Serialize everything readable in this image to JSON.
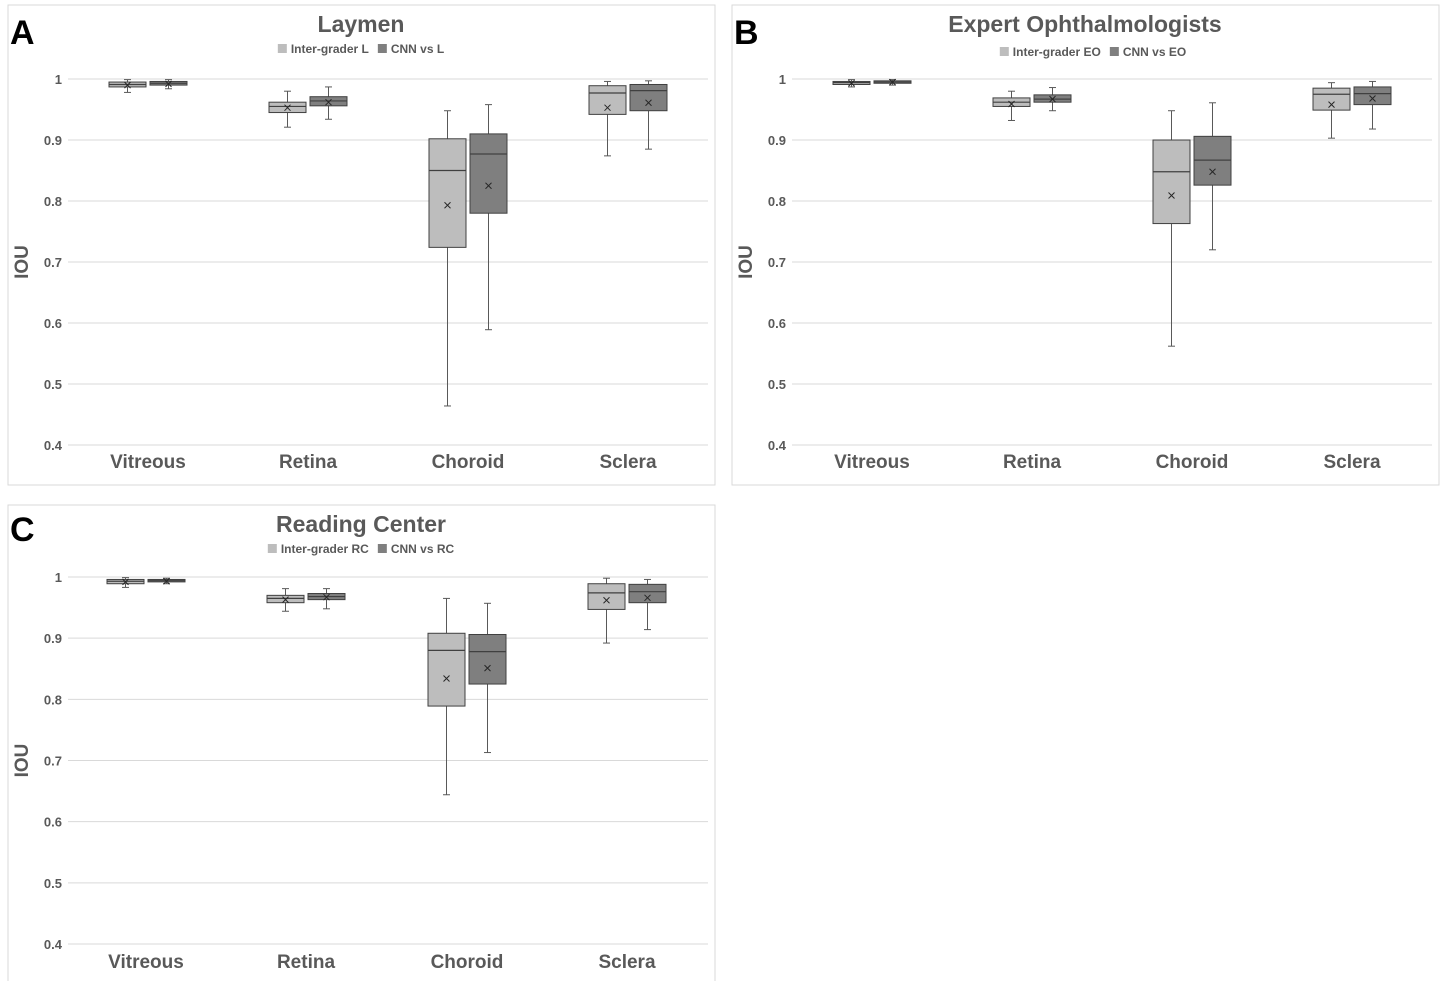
{
  "chart_data": [
    {
      "panel_letter": "A",
      "type": "box",
      "title": "Laymen",
      "ylabel": "IOU",
      "ylim": [
        0.4,
        1
      ],
      "yticks": [
        "0.4",
        "0.5",
        "0.6",
        "0.7",
        "0.8",
        "0.9",
        "1"
      ],
      "grid": true,
      "legend_position": "top-center",
      "categories": [
        "Vitreous",
        "Retina",
        "Choroid",
        "Sclera"
      ],
      "series": [
        {
          "name": "Inter-grader L",
          "color": "#bdbdbd",
          "boxes": [
            {
              "min": 0.978,
              "q1": 0.987,
              "median": 0.991,
              "q3": 0.995,
              "max": 0.999,
              "mean": 0.99
            },
            {
              "min": 0.921,
              "q1": 0.945,
              "median": 0.955,
              "q3": 0.962,
              "max": 0.98,
              "mean": 0.953
            },
            {
              "min": 0.464,
              "q1": 0.724,
              "median": 0.85,
              "q3": 0.902,
              "max": 0.948,
              "mean": 0.793
            },
            {
              "min": 0.874,
              "q1": 0.942,
              "median": 0.977,
              "q3": 0.989,
              "max": 0.996,
              "mean": 0.953
            }
          ]
        },
        {
          "name": "CNN vs L",
          "color": "#7f7f7f",
          "boxes": [
            {
              "min": 0.984,
              "q1": 0.99,
              "median": 0.993,
              "q3": 0.996,
              "max": 0.999,
              "mean": 0.992
            },
            {
              "min": 0.934,
              "q1": 0.956,
              "median": 0.964,
              "q3": 0.971,
              "max": 0.987,
              "mean": 0.962
            },
            {
              "min": 0.589,
              "q1": 0.78,
              "median": 0.877,
              "q3": 0.91,
              "max": 0.958,
              "mean": 0.825
            },
            {
              "min": 0.885,
              "q1": 0.948,
              "median": 0.981,
              "q3": 0.991,
              "max": 0.997,
              "mean": 0.961
            }
          ]
        }
      ]
    },
    {
      "panel_letter": "B",
      "type": "box",
      "title": "Expert Ophthalmologists",
      "ylabel": "IOU",
      "ylim": [
        0.4,
        1
      ],
      "yticks": [
        "0.4",
        "0.5",
        "0.6",
        "0.7",
        "0.8",
        "0.9",
        "1"
      ],
      "grid": true,
      "legend_position": "top-center",
      "categories": [
        "Vitreous",
        "Retina",
        "Choroid",
        "Sclera"
      ],
      "series": [
        {
          "name": "Inter-grader EO",
          "color": "#bdbdbd",
          "boxes": [
            {
              "min": 0.987,
              "q1": 0.991,
              "median": 0.994,
              "q3": 0.996,
              "max": 0.999,
              "mean": 0.993
            },
            {
              "min": 0.932,
              "q1": 0.955,
              "median": 0.962,
              "q3": 0.969,
              "max": 0.98,
              "mean": 0.959
            },
            {
              "min": 0.562,
              "q1": 0.763,
              "median": 0.848,
              "q3": 0.9,
              "max": 0.948,
              "mean": 0.809
            },
            {
              "min": 0.903,
              "q1": 0.949,
              "median": 0.975,
              "q3": 0.985,
              "max": 0.994,
              "mean": 0.958
            }
          ]
        },
        {
          "name": "CNN vs EO",
          "color": "#7f7f7f",
          "boxes": [
            {
              "min": 0.99,
              "q1": 0.993,
              "median": 0.995,
              "q3": 0.997,
              "max": 0.999,
              "mean": 0.995
            },
            {
              "min": 0.948,
              "q1": 0.962,
              "median": 0.967,
              "q3": 0.974,
              "max": 0.986,
              "mean": 0.967
            },
            {
              "min": 0.72,
              "q1": 0.826,
              "median": 0.867,
              "q3": 0.906,
              "max": 0.961,
              "mean": 0.848
            },
            {
              "min": 0.918,
              "q1": 0.958,
              "median": 0.976,
              "q3": 0.987,
              "max": 0.996,
              "mean": 0.968
            }
          ]
        }
      ]
    },
    {
      "panel_letter": "C",
      "type": "box",
      "title": "Reading Center",
      "ylabel": "IOU",
      "ylim": [
        0.4,
        1
      ],
      "yticks": [
        "0.4",
        "0.5",
        "0.6",
        "0.7",
        "0.8",
        "0.9",
        "1"
      ],
      "grid": true,
      "legend_position": "top-center",
      "categories": [
        "Vitreous",
        "Retina",
        "Choroid",
        "Sclera"
      ],
      "series": [
        {
          "name": "Inter-grader RC",
          "color": "#bdbdbd",
          "boxes": [
            {
              "min": 0.983,
              "q1": 0.989,
              "median": 0.993,
              "q3": 0.996,
              "max": 0.999,
              "mean": 0.992
            },
            {
              "min": 0.944,
              "q1": 0.958,
              "median": 0.965,
              "q3": 0.97,
              "max": 0.981,
              "mean": 0.963
            },
            {
              "min": 0.644,
              "q1": 0.789,
              "median": 0.88,
              "q3": 0.908,
              "max": 0.965,
              "mean": 0.834
            },
            {
              "min": 0.892,
              "q1": 0.947,
              "median": 0.974,
              "q3": 0.989,
              "max": 0.998,
              "mean": 0.962
            }
          ]
        },
        {
          "name": "CNN vs RC",
          "color": "#7f7f7f",
          "boxes": [
            {
              "min": 0.989,
              "q1": 0.992,
              "median": 0.994,
              "q3": 0.996,
              "max": 0.998,
              "mean": 0.993
            },
            {
              "min": 0.948,
              "q1": 0.963,
              "median": 0.968,
              "q3": 0.973,
              "max": 0.981,
              "mean": 0.967
            },
            {
              "min": 0.713,
              "q1": 0.825,
              "median": 0.878,
              "q3": 0.906,
              "max": 0.957,
              "mean": 0.851
            },
            {
              "min": 0.914,
              "q1": 0.958,
              "median": 0.976,
              "q3": 0.988,
              "max": 0.996,
              "mean": 0.966
            }
          ]
        }
      ]
    }
  ]
}
